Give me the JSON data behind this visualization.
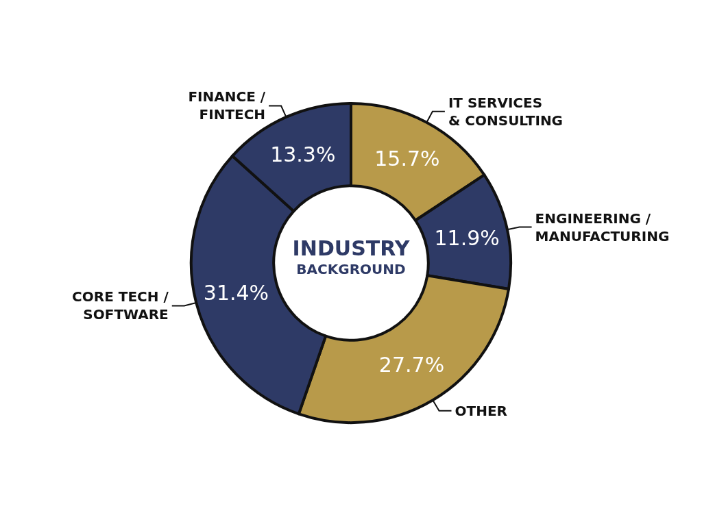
{
  "chart_data": {
    "type": "donut",
    "title": "INDUSTRY",
    "subtitle": "BACKGROUND",
    "categories": [
      "IT SERVICES\n& CONSULTING",
      "ENGINEERING /\nMANUFACTURING",
      "OTHER",
      "CORE TECH /\nSOFTWARE",
      "FINANCE /\nFINTECH"
    ],
    "values": [
      15.7,
      11.9,
      27.7,
      31.4,
      13.3
    ],
    "colors": [
      "#b89a4a",
      "#2e3a66",
      "#b89a4a",
      "#2e3a66",
      "#2e3a66"
    ],
    "value_labels": [
      "15.7%",
      "11.9%",
      "27.7%",
      "31.4%",
      "13.3%"
    ],
    "legend": false
  }
}
